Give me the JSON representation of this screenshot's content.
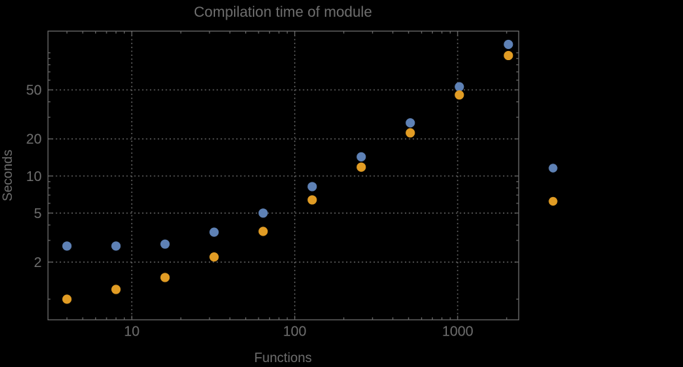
{
  "chart_data": {
    "type": "scatter",
    "title": "Compilation time of module",
    "xlabel": "Functions",
    "ylabel": "Seconds",
    "log_x": true,
    "log_y": true,
    "xlim": [
      3.06,
      2370
    ],
    "ylim": [
      0.68,
      150
    ],
    "grid": "dotted, at labeled major ticks only",
    "x_major_ticks": [
      {
        "value": 10,
        "label": "10"
      },
      {
        "value": 100,
        "label": "100"
      },
      {
        "value": 1000,
        "label": "1000"
      }
    ],
    "x_minor_ticks": [
      4,
      5,
      6,
      7,
      8,
      9,
      20,
      30,
      40,
      50,
      60,
      70,
      80,
      90,
      200,
      300,
      400,
      500,
      600,
      700,
      800,
      900,
      2000
    ],
    "y_major_ticks": [
      {
        "value": 2,
        "label": "2"
      },
      {
        "value": 5,
        "label": "5"
      },
      {
        "value": 10,
        "label": "10"
      },
      {
        "value": 20,
        "label": "20"
      },
      {
        "value": 50,
        "label": "50"
      }
    ],
    "y_minor_ticks": [
      1,
      3,
      4,
      6,
      7,
      8,
      9,
      30,
      40,
      60,
      70,
      80,
      90,
      100
    ],
    "x": [
      4,
      8,
      16,
      32,
      64,
      128,
      256,
      512,
      1024,
      2048
    ],
    "series": [
      {
        "name": "series-1-blue",
        "color": "#5e81b5",
        "values": [
          2.7,
          2.7,
          2.8,
          3.5,
          5.0,
          8.2,
          14.3,
          27,
          53,
          117
        ]
      },
      {
        "name": "series-2-orange",
        "color": "#e19c24",
        "values": [
          1.0,
          1.2,
          1.5,
          2.2,
          3.55,
          6.4,
          11.8,
          22.4,
          45.5,
          95
        ]
      }
    ],
    "legend": {
      "position": "right-outside",
      "labels_visible": false,
      "markers": [
        {
          "name": "legend-marker-series-1",
          "color": "#5e81b5"
        },
        {
          "name": "legend-marker-series-2",
          "color": "#e19c24"
        }
      ]
    },
    "styles": {
      "background": "#000000",
      "text_color": "#6e6e6e",
      "line_color": "#636363"
    }
  }
}
